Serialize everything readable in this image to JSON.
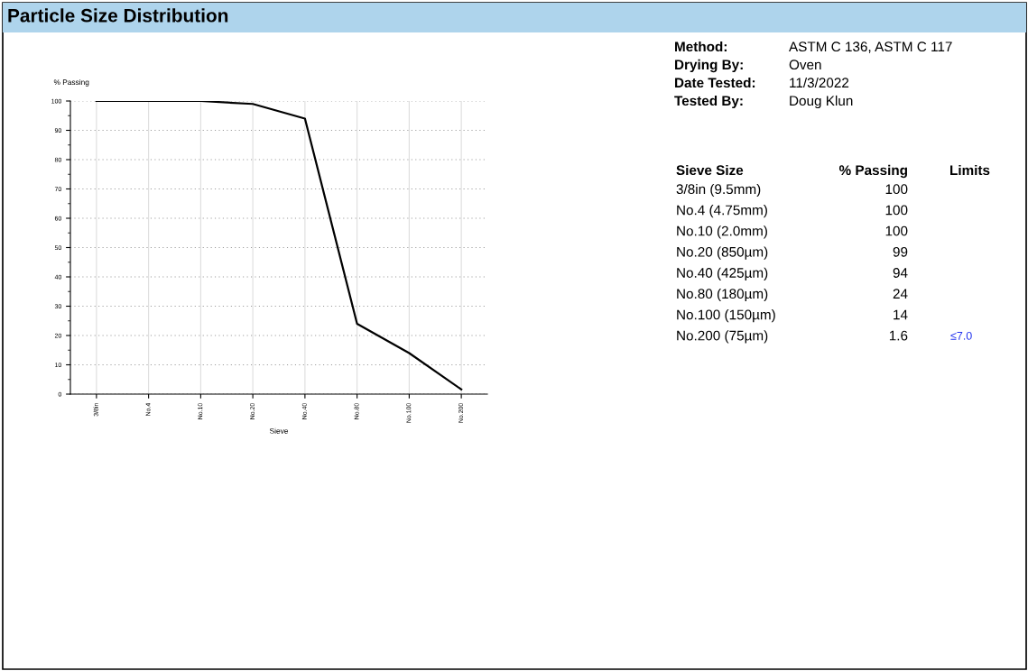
{
  "chart_data": {
    "type": "line",
    "title": "Particle Size Distribution",
    "xlabel": "Sieve",
    "ylabel": "% Passing",
    "categories": [
      "3/8in",
      "No.4",
      "No.10",
      "No.20",
      "No.40",
      "No.80",
      "No.100",
      "No.200"
    ],
    "series": [
      {
        "color": "#000000",
        "values": [
          100,
          100,
          100,
          99,
          94,
          24,
          14,
          1.6
        ]
      }
    ],
    "ylim": [
      0,
      100
    ],
    "yticks": [
      0,
      10,
      20,
      30,
      40,
      50,
      60,
      70,
      80,
      90,
      100
    ],
    "grid": true,
    "marker": "none",
    "line_style": "solid",
    "annotations": [
      "Method:",
      "ASTM C 136, ASTM C 117",
      "Drying By:",
      "Oven",
      "Date Tested:",
      "11/3/2022",
      "Tested By:",
      "Doug Klun",
      "Sieve Size",
      "% Passing",
      "Limits",
      "3/8in (9.5mm)",
      "No.4 (4.75mm)",
      "No.10 (2.0mm)",
      "No.20 (850µm)",
      "No.40 (425µm)",
      "No.80 (180µm)",
      "No.100 (150µm)",
      "No.200 (75µm)",
      "100",
      "100",
      "100",
      "99",
      "94",
      "24",
      "14",
      "1.6",
      "≤7.0"
    ]
  }
}
